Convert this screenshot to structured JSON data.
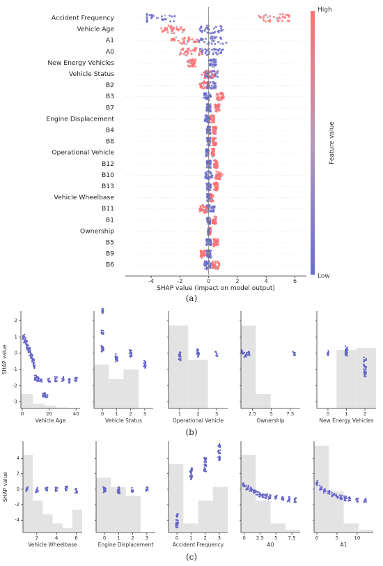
{
  "figure": {
    "captions": [
      "(a)",
      "(b)",
      "(c)"
    ]
  },
  "chart_data": [
    {
      "type": "scatter",
      "subtype": "shap-beeswarm",
      "xlabel": "SHAP value (impact on model output)",
      "xlim": [
        -5.8,
        6.8
      ],
      "xticks": [
        -4,
        -2,
        0,
        2,
        4,
        6
      ],
      "colorbar": {
        "label": "Feature value",
        "high": "High",
        "low": "Low",
        "high_color": "#ff7070",
        "low_color": "#6a6ad0",
        "mid_color": "#a9a9c4"
      },
      "features": [
        {
          "name": "Accident Frequency",
          "range": [
            -4.3,
            5.6
          ],
          "low_center": -3.8,
          "high_center": 5.0,
          "spread": 0.35
        },
        {
          "name": "Vehicle Age",
          "range": [
            -3.5,
            1.3
          ],
          "low_center": 0.2,
          "high_center": -2.5,
          "spread": 0.4
        },
        {
          "name": "A1",
          "range": [
            -3.0,
            1.4
          ],
          "low_center": 0.3,
          "high_center": -1.6,
          "spread": 0.5
        },
        {
          "name": "A0",
          "range": [
            -2.8,
            1.2
          ],
          "low_center": 0.2,
          "high_center": -1.2,
          "spread": 0.45
        },
        {
          "name": "New Energy Vehicles",
          "range": [
            -1.7,
            0.9
          ],
          "low_center": 0.3,
          "high_center": -1.2,
          "spread": 0.25
        },
        {
          "name": "Vehicle Status",
          "range": [
            -0.9,
            2.6
          ],
          "low_center": 0.2,
          "high_center": 0.0,
          "spread": 0.3
        },
        {
          "name": "B2",
          "range": [
            -1.0,
            1.4
          ],
          "low_center": 0.2,
          "high_center": -0.3,
          "spread": 0.3
        },
        {
          "name": "B3",
          "range": [
            -0.6,
            1.6
          ],
          "low_center": -0.1,
          "high_center": 0.8,
          "spread": 0.25
        },
        {
          "name": "B7",
          "range": [
            -0.4,
            1.3
          ],
          "low_center": 0.0,
          "high_center": 0.6,
          "spread": 0.2
        },
        {
          "name": "Engine Displacement",
          "range": [
            -1.1,
            0.5
          ],
          "low_center": -0.1,
          "high_center": 0.2,
          "spread": 0.25
        },
        {
          "name": "B4",
          "range": [
            -0.5,
            1.0
          ],
          "low_center": 0.0,
          "high_center": 0.4,
          "spread": 0.2
        },
        {
          "name": "B8",
          "range": [
            -0.5,
            1.0
          ],
          "low_center": 0.0,
          "high_center": 0.4,
          "spread": 0.2
        },
        {
          "name": "Operational Vehicle",
          "range": [
            -0.5,
            0.8
          ],
          "low_center": -0.1,
          "high_center": 0.3,
          "spread": 0.15
        },
        {
          "name": "B12",
          "range": [
            -0.5,
            1.1
          ],
          "low_center": 0.0,
          "high_center": 0.5,
          "spread": 0.2
        },
        {
          "name": "B10",
          "range": [
            -0.6,
            1.6
          ],
          "low_center": 0.0,
          "high_center": 0.7,
          "spread": 0.25
        },
        {
          "name": "B13",
          "range": [
            -0.5,
            1.2
          ],
          "low_center": 0.0,
          "high_center": 0.5,
          "spread": 0.2
        },
        {
          "name": "Vehicle Wheelbase",
          "range": [
            -0.6,
            0.8
          ],
          "low_center": 0.0,
          "high_center": 0.2,
          "spread": 0.2
        },
        {
          "name": "B11",
          "range": [
            -1.2,
            1.2
          ],
          "low_center": 0.1,
          "high_center": -0.3,
          "spread": 0.3
        },
        {
          "name": "B1",
          "range": [
            -0.5,
            1.0
          ],
          "low_center": 0.0,
          "high_center": 0.4,
          "spread": 0.2
        },
        {
          "name": "Ownership",
          "range": [
            -0.4,
            0.5
          ],
          "low_center": 0.0,
          "high_center": 0.1,
          "spread": 0.12
        },
        {
          "name": "B5",
          "range": [
            -0.6,
            1.3
          ],
          "low_center": 0.0,
          "high_center": 0.5,
          "spread": 0.2
        },
        {
          "name": "B9",
          "range": [
            -1.0,
            0.8
          ],
          "low_center": 0.0,
          "high_center": -0.4,
          "spread": 0.2
        },
        {
          "name": "B6",
          "range": [
            -0.9,
            1.3
          ],
          "low_center": -0.1,
          "high_center": 0.5,
          "spread": 0.25
        }
      ]
    },
    {
      "type": "scatter",
      "subtype": "shap-dependence",
      "ylabel": "SHAP value",
      "panels": [
        {
          "xlabel": "Vehicle Age",
          "xlim": [
            -1,
            43
          ],
          "xticks": [
            0,
            20,
            40
          ],
          "ylim": [
            -3.4,
            2.6
          ],
          "yticks": [
            -3,
            -2,
            -1,
            0,
            1,
            2
          ],
          "hist": [
            0.15,
            0.05,
            0.03,
            0.01,
            0.005
          ],
          "points": [
            [
              1,
              1.0
            ],
            [
              2,
              0.8
            ],
            [
              3,
              0.6
            ],
            [
              4,
              0.4
            ],
            [
              5,
              0.2
            ],
            [
              6,
              0.0
            ],
            [
              7,
              -0.2
            ],
            [
              8,
              -0.5
            ],
            [
              9,
              -0.8
            ],
            [
              10,
              -1.5
            ],
            [
              12,
              -1.6
            ],
            [
              14,
              -1.7
            ],
            [
              16,
              -2.6
            ],
            [
              18,
              -2.6
            ],
            [
              20,
              -1.7
            ],
            [
              25,
              -1.6
            ],
            [
              30,
              -1.6
            ],
            [
              35,
              -1.7
            ],
            [
              40,
              -1.6
            ]
          ]
        },
        {
          "xlabel": "Vehicle Status",
          "xlim": [
            -0.6,
            3.6
          ],
          "xticks": [
            0,
            1,
            2,
            3
          ],
          "ylim": [
            -3.4,
            2.6
          ],
          "hist": [
            0.45,
            0.3,
            0.4,
            0
          ],
          "points": [
            [
              0,
              0.3
            ],
            [
              0,
              0.2
            ],
            [
              0,
              1.3
            ],
            [
              0,
              2.6
            ],
            [
              1,
              -0.2
            ],
            [
              1,
              -0.4
            ],
            [
              2,
              0.1
            ],
            [
              2,
              -0.1
            ],
            [
              3,
              -0.6
            ],
            [
              3,
              -0.8
            ]
          ]
        },
        {
          "xlabel": "Operational Vehicle",
          "xlim": [
            0.4,
            3.6
          ],
          "xticks": [
            1,
            2,
            3
          ],
          "ylim": [
            -3.4,
            2.6
          ],
          "hist": [
            0.85,
            0.5,
            0
          ],
          "points": [
            [
              1,
              -0.1
            ],
            [
              1,
              -0.3
            ],
            [
              2,
              0.1
            ],
            [
              2,
              -0.1
            ],
            [
              3,
              -0.05
            ]
          ]
        },
        {
          "xlabel": "Ownership",
          "xlim": [
            1.0,
            8.8
          ],
          "xticks": [
            2.5,
            5.0,
            7.5
          ],
          "ylim": [
            -3.4,
            2.6
          ],
          "hist": [
            0.85,
            0.15,
            0,
            0
          ],
          "points": [
            [
              1.2,
              0.1
            ],
            [
              1.6,
              -0.1
            ],
            [
              2.0,
              0.0
            ],
            [
              8.0,
              -0.05
            ]
          ]
        },
        {
          "xlabel": "New Energy Vehicles",
          "xlim": [
            -0.6,
            2.6
          ],
          "xticks": [
            0,
            1,
            2
          ],
          "ylim": [
            -3.4,
            2.6
          ],
          "hist": [
            0,
            0.6,
            0.62
          ],
          "points": [
            [
              0,
              0.0
            ],
            [
              1,
              0.3
            ],
            [
              1,
              0.1
            ],
            [
              1,
              -0.1
            ],
            [
              2,
              -0.4
            ],
            [
              2,
              -0.8
            ],
            [
              2,
              -1.1
            ],
            [
              2,
              -1.3
            ]
          ]
        }
      ]
    },
    {
      "type": "scatter",
      "subtype": "shap-dependence",
      "ylabel": "SHAP value",
      "panels": [
        {
          "xlabel": "Vehicle Wheelbase",
          "xlim": [
            0.6,
            6.6
          ],
          "xticks": [
            2,
            4,
            6
          ],
          "ylim": [
            -5.6,
            6.2
          ],
          "yticks": [
            -4,
            -2,
            0,
            2,
            4
          ],
          "hist": [
            0.85,
            0.35,
            0.2,
            0.1,
            0.05,
            0.25
          ],
          "points": [
            [
              1,
              0.0
            ],
            [
              2,
              -0.1
            ],
            [
              3,
              -0.05
            ],
            [
              4,
              0.0
            ],
            [
              5,
              0.1
            ],
            [
              6,
              -0.2
            ]
          ]
        },
        {
          "xlabel": "Engine Displacement",
          "xlim": [
            -0.6,
            3.6
          ],
          "xticks": [
            0,
            1,
            2,
            3
          ],
          "ylim": [
            -5.6,
            6.2
          ],
          "hist": [
            0.6,
            0.5,
            0.4,
            0
          ],
          "points": [
            [
              0,
              0.0
            ],
            [
              0,
              -0.2
            ],
            [
              1,
              -0.3
            ],
            [
              1,
              0.0
            ],
            [
              2,
              -0.1
            ],
            [
              3,
              0.0
            ]
          ]
        },
        {
          "xlabel": "Accident Frequency",
          "xlim": [
            -0.6,
            3.6
          ],
          "xticks": [
            0,
            1,
            2,
            3
          ],
          "ylim": [
            -5.6,
            6.2
          ],
          "hist": [
            0.75,
            0.1,
            0.35,
            0.5
          ],
          "points": [
            [
              0,
              -3.5
            ],
            [
              0,
              -4.2
            ],
            [
              0,
              -4.8
            ],
            [
              1,
              1.5
            ],
            [
              1,
              2.0
            ],
            [
              1,
              2.5
            ],
            [
              2,
              2.5
            ],
            [
              2,
              3.2
            ],
            [
              2,
              3.8
            ],
            [
              3,
              4.0
            ],
            [
              3,
              4.8
            ],
            [
              3,
              5.6
            ]
          ]
        },
        {
          "xlabel": "A0",
          "xlim": [
            -0.5,
            8.8
          ],
          "xticks": [
            0.0,
            2.5,
            5.0,
            7.5
          ],
          "ylim": [
            -5.6,
            6.2
          ],
          "hist": [
            0.85,
            0.35,
            0.1,
            0.03
          ],
          "points": [
            [
              0,
              0.6
            ],
            [
              0.5,
              0.2
            ],
            [
              1,
              0.0
            ],
            [
              1.5,
              -0.3
            ],
            [
              2,
              -0.5
            ],
            [
              2.5,
              -0.7
            ],
            [
              3,
              -0.8
            ],
            [
              3.5,
              -0.9
            ],
            [
              4,
              -1.0
            ],
            [
              5,
              -1.1
            ],
            [
              6,
              -1.2
            ],
            [
              7,
              -1.3
            ],
            [
              8,
              -1.4
            ]
          ]
        },
        {
          "xlabel": "A1",
          "xlim": [
            -0.7,
            14
          ],
          "xticks": [
            0,
            5,
            10
          ],
          "ylim": [
            -5.6,
            6.2
          ],
          "hist": [
            0.95,
            0.45,
            0.1,
            0.03
          ],
          "points": [
            [
              0,
              0.8
            ],
            [
              1,
              0.2
            ],
            [
              2,
              -0.2
            ],
            [
              3,
              -0.5
            ],
            [
              4,
              -0.7
            ],
            [
              5,
              -0.9
            ],
            [
              6,
              -1.0
            ],
            [
              7,
              -1.2
            ],
            [
              8,
              -1.3
            ],
            [
              10,
              -1.4
            ],
            [
              12,
              -1.5
            ]
          ]
        }
      ]
    }
  ]
}
